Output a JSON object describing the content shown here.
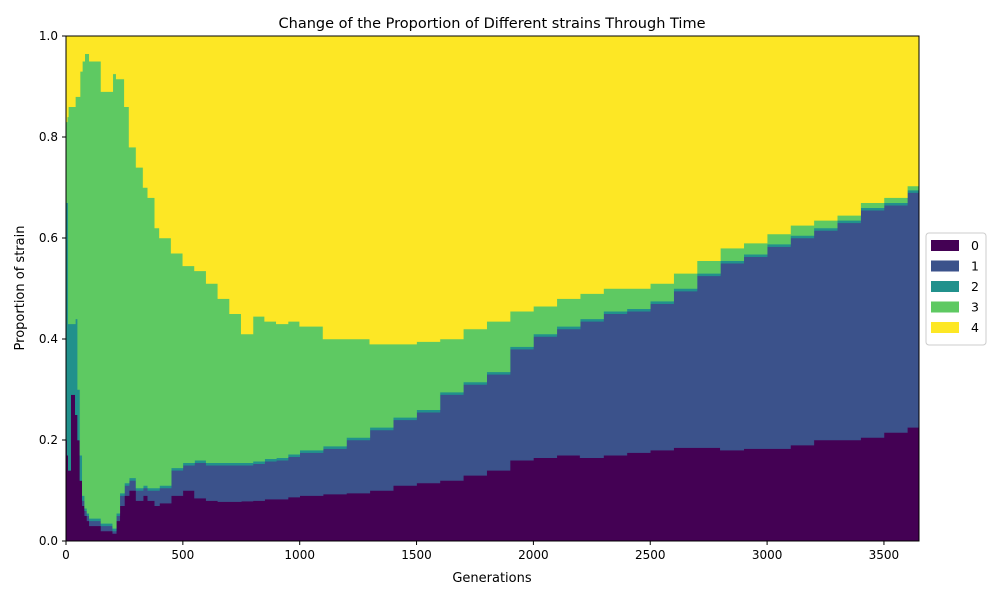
{
  "chart_data": {
    "type": "area",
    "stacked": true,
    "title": "Change of the Proportion of Different strains Through Time",
    "xlabel": "Generations",
    "ylabel": "Proportion of strain",
    "xlim": [
      0,
      3650
    ],
    "ylim": [
      0,
      1
    ],
    "xticks": [
      0,
      500,
      1000,
      1500,
      2000,
      2500,
      3000,
      3500
    ],
    "yticks": [
      0.0,
      0.2,
      0.4,
      0.6,
      0.8,
      1.0
    ],
    "ytick_labels": [
      "0.0",
      "0.2",
      "0.4",
      "0.6",
      "0.8",
      "1.0"
    ],
    "grid": false,
    "legend_position": "right",
    "x": [
      0,
      5,
      10,
      20,
      30,
      40,
      50,
      60,
      70,
      80,
      90,
      100,
      150,
      200,
      215,
      230,
      250,
      270,
      300,
      330,
      350,
      380,
      400,
      450,
      500,
      550,
      600,
      650,
      700,
      750,
      800,
      850,
      900,
      950,
      1000,
      1100,
      1200,
      1300,
      1400,
      1500,
      1600,
      1700,
      1800,
      1900,
      2000,
      2100,
      2200,
      2300,
      2400,
      2500,
      2600,
      2700,
      2800,
      2900,
      3000,
      3100,
      3200,
      3300,
      3400,
      3500,
      3600,
      3650
    ],
    "series": [
      {
        "name": "0",
        "color": "#440154",
        "values": [
          0.2,
          0.17,
          0.14,
          0.29,
          0.29,
          0.25,
          0.2,
          0.12,
          0.07,
          0.05,
          0.04,
          0.03,
          0.02,
          0.015,
          0.04,
          0.07,
          0.09,
          0.1,
          0.08,
          0.09,
          0.08,
          0.07,
          0.075,
          0.09,
          0.1,
          0.085,
          0.08,
          0.078,
          0.078,
          0.079,
          0.08,
          0.083,
          0.083,
          0.087,
          0.09,
          0.093,
          0.095,
          0.1,
          0.11,
          0.115,
          0.12,
          0.13,
          0.14,
          0.16,
          0.165,
          0.17,
          0.165,
          0.17,
          0.175,
          0.18,
          0.185,
          0.185,
          0.18,
          0.183,
          0.183,
          0.19,
          0.2,
          0.2,
          0.205,
          0.215,
          0.225,
          0.225
        ]
      },
      {
        "name": "1",
        "color": "#3b528b",
        "values": [
          0.0,
          0.0,
          0.0,
          0.0,
          0.0,
          0.0,
          0.0,
          0.0,
          0.01,
          0.01,
          0.01,
          0.01,
          0.01,
          0.005,
          0.01,
          0.02,
          0.02,
          0.02,
          0.02,
          0.015,
          0.02,
          0.03,
          0.03,
          0.05,
          0.05,
          0.07,
          0.07,
          0.072,
          0.072,
          0.071,
          0.073,
          0.075,
          0.077,
          0.08,
          0.085,
          0.09,
          0.105,
          0.12,
          0.13,
          0.14,
          0.17,
          0.18,
          0.19,
          0.22,
          0.24,
          0.25,
          0.27,
          0.28,
          0.28,
          0.29,
          0.31,
          0.34,
          0.37,
          0.38,
          0.4,
          0.41,
          0.415,
          0.43,
          0.45,
          0.45,
          0.465,
          0.47
        ]
      },
      {
        "name": "2",
        "color": "#21918c",
        "values": [
          0.47,
          0.5,
          0.29,
          0.14,
          0.14,
          0.19,
          0.1,
          0.05,
          0.01,
          0.005,
          0.005,
          0.005,
          0.005,
          0.005,
          0.005,
          0.005,
          0.005,
          0.005,
          0.005,
          0.005,
          0.005,
          0.005,
          0.005,
          0.005,
          0.005,
          0.005,
          0.005,
          0.005,
          0.005,
          0.005,
          0.005,
          0.005,
          0.005,
          0.005,
          0.005,
          0.005,
          0.005,
          0.005,
          0.005,
          0.005,
          0.005,
          0.005,
          0.005,
          0.005,
          0.005,
          0.005,
          0.005,
          0.005,
          0.005,
          0.005,
          0.005,
          0.005,
          0.005,
          0.005,
          0.005,
          0.005,
          0.005,
          0.005,
          0.005,
          0.005,
          0.005,
          0.005
        ]
      },
      {
        "name": "3",
        "color": "#5ec962",
        "values": [
          0.16,
          0.17,
          0.43,
          0.43,
          0.43,
          0.44,
          0.58,
          0.76,
          0.86,
          0.9,
          0.91,
          0.905,
          0.855,
          0.9,
          0.86,
          0.82,
          0.745,
          0.655,
          0.635,
          0.59,
          0.575,
          0.515,
          0.49,
          0.425,
          0.39,
          0.375,
          0.355,
          0.325,
          0.295,
          0.255,
          0.287,
          0.272,
          0.265,
          0.263,
          0.245,
          0.212,
          0.195,
          0.165,
          0.145,
          0.135,
          0.105,
          0.105,
          0.1,
          0.07,
          0.055,
          0.055,
          0.05,
          0.045,
          0.04,
          0.035,
          0.03,
          0.025,
          0.025,
          0.022,
          0.02,
          0.02,
          0.015,
          0.01,
          0.01,
          0.01,
          0.008,
          0.005
        ]
      },
      {
        "name": "4",
        "color": "#fde725",
        "values": [
          0.17,
          0.16,
          0.14,
          0.14,
          0.14,
          0.12,
          0.12,
          0.07,
          0.05,
          0.035,
          0.035,
          0.05,
          0.11,
          0.075,
          0.085,
          0.085,
          0.14,
          0.22,
          0.26,
          0.3,
          0.32,
          0.38,
          0.4,
          0.43,
          0.455,
          0.465,
          0.49,
          0.52,
          0.55,
          0.59,
          0.555,
          0.565,
          0.57,
          0.565,
          0.575,
          0.6,
          0.6,
          0.61,
          0.61,
          0.605,
          0.6,
          0.58,
          0.565,
          0.545,
          0.535,
          0.52,
          0.51,
          0.5,
          0.5,
          0.49,
          0.47,
          0.445,
          0.42,
          0.41,
          0.392,
          0.375,
          0.365,
          0.355,
          0.33,
          0.32,
          0.297,
          0.295
        ]
      }
    ]
  }
}
